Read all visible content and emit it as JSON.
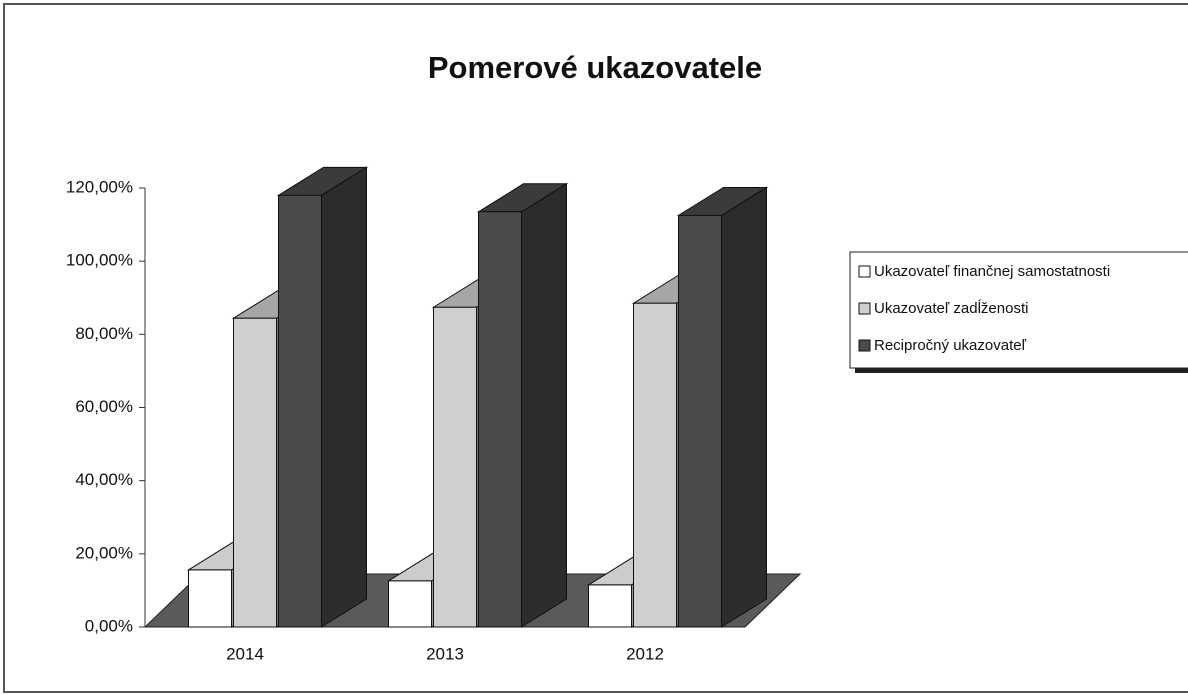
{
  "chart_data": {
    "type": "bar3d",
    "title": "Pomerové ukazovatele",
    "categories": [
      "2014",
      "2013",
      "2012"
    ],
    "series": [
      {
        "name": "Ukazovateľ finančnej samostatnosti",
        "color": "#ffffff",
        "values": [
          15.6,
          12.6,
          11.5
        ]
      },
      {
        "name": "Ukazovateľ zadĺženosti",
        "color": "#cfcfcf",
        "values": [
          84.4,
          87.4,
          88.5
        ]
      },
      {
        "name": "Recipročný ukazovateľ",
        "color": "#4a4a4a",
        "values": [
          118,
          113.5,
          112.5
        ]
      }
    ],
    "ylim": [
      0,
      120
    ],
    "yticks": [
      {
        "value": 0,
        "label": "0,00%"
      },
      {
        "value": 20,
        "label": "20,00%"
      },
      {
        "value": 40,
        "label": "40,00%"
      },
      {
        "value": 60,
        "label": "60,00%"
      },
      {
        "value": 80,
        "label": "80,00%"
      },
      {
        "value": 100,
        "label": "100,00%"
      },
      {
        "value": 120,
        "label": "120,00%"
      }
    ],
    "legend": "right"
  }
}
